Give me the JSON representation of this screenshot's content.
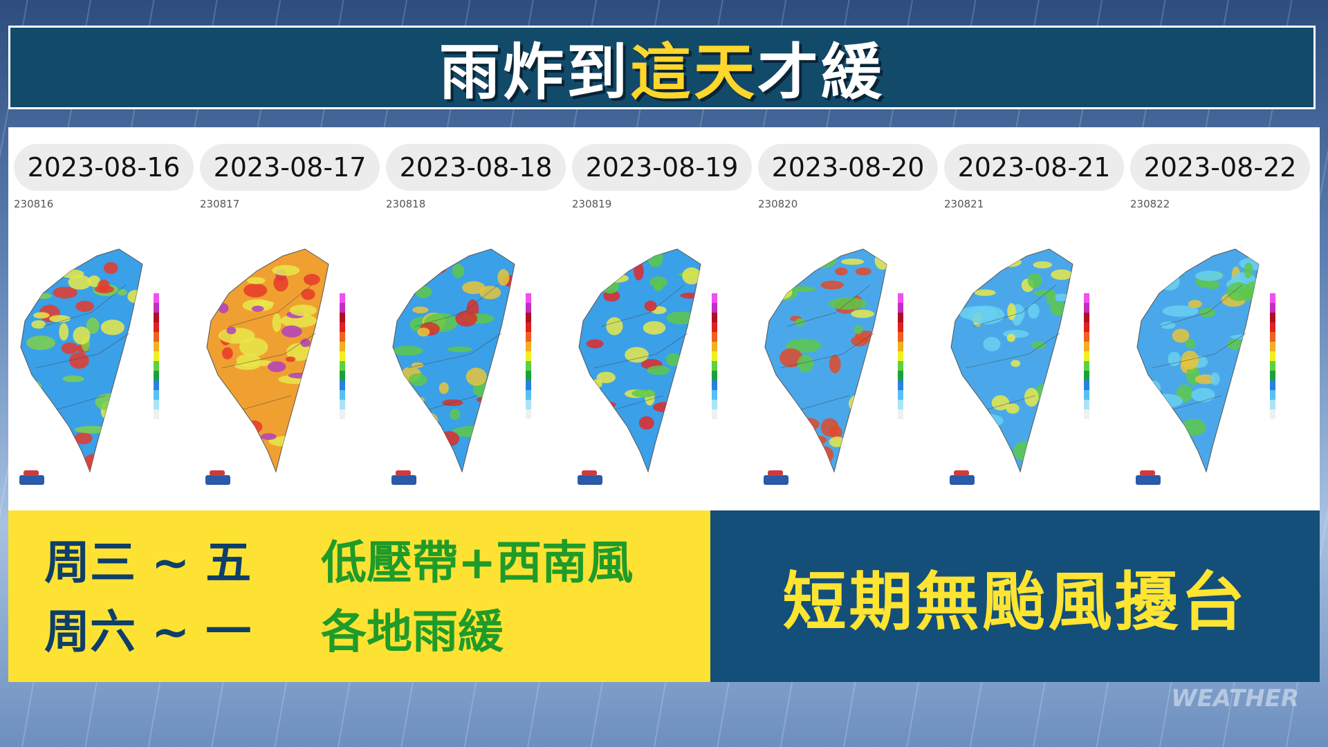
{
  "header": {
    "title": [
      "雨炸到",
      "這天",
      "才緩"
    ]
  },
  "maps": [
    {
      "date": "2023-08-16",
      "code": "230816"
    },
    {
      "date": "2023-08-17",
      "code": "230817"
    },
    {
      "date": "2023-08-18",
      "code": "230818"
    },
    {
      "date": "2023-08-19",
      "code": "230819"
    },
    {
      "date": "2023-08-20",
      "code": "230820"
    },
    {
      "date": "2023-08-21",
      "code": "230821"
    },
    {
      "date": "2023-08-22",
      "code": "230822"
    }
  ],
  "summary": {
    "rows": [
      {
        "days": "周三 ~ 五",
        "cause": "低壓帶+西南風"
      },
      {
        "days": "周六 ~ 一",
        "cause": "各地雨緩"
      }
    ],
    "note": "短期無颱風擾台"
  },
  "watermark": "WEATHER"
}
